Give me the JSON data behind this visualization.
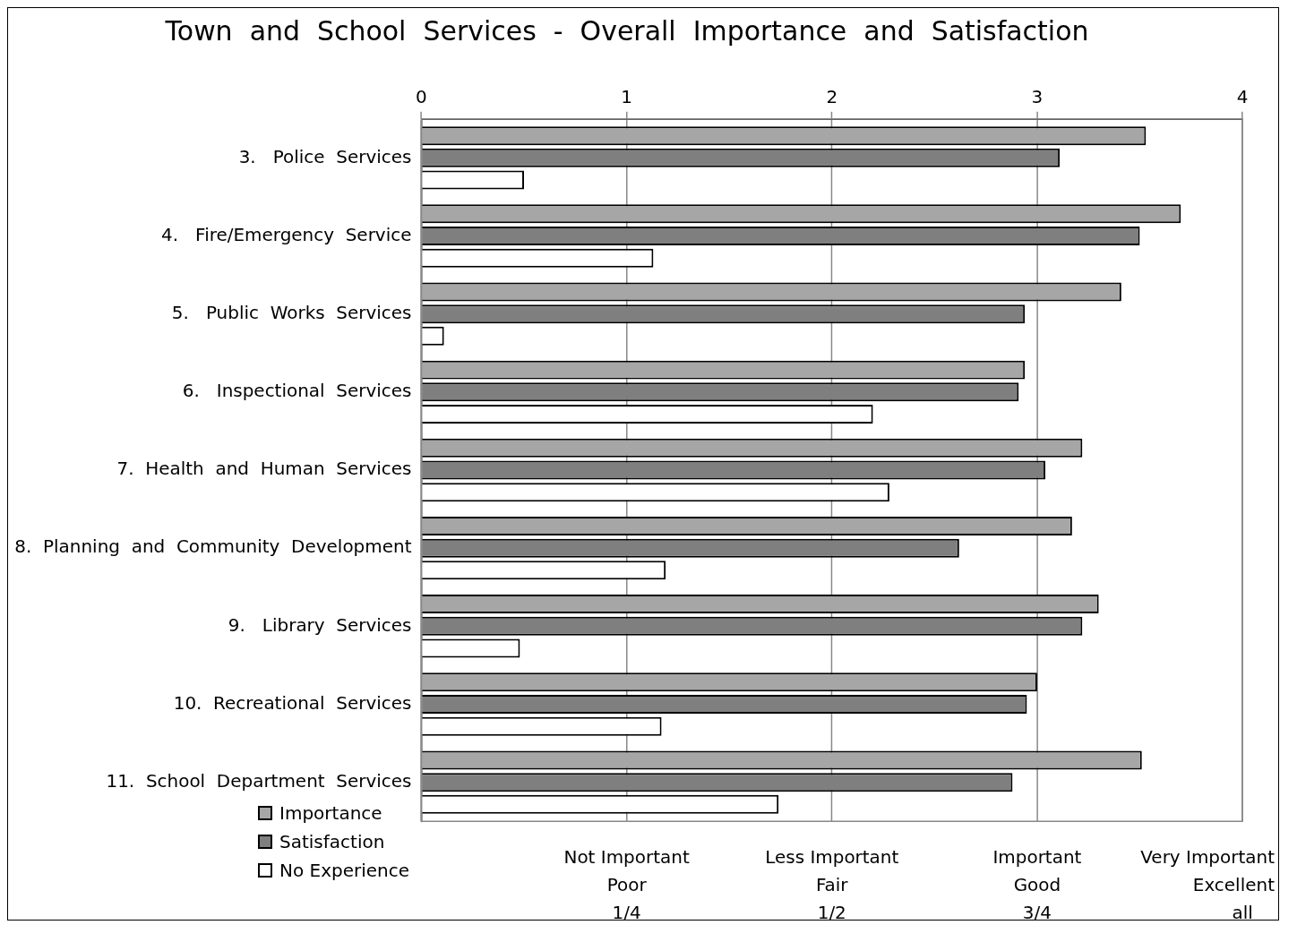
{
  "chart_data": {
    "type": "bar",
    "orientation": "horizontal",
    "title": "Town  and  School  Services  -  Overall  Importance  and  Satisfaction",
    "categories": [
      "3.   Police  Services",
      "4.   Fire/Emergency  Service",
      "5.   Public  Works  Services",
      "6.   Inspectional  Services",
      "7.  Health  and  Human  Services",
      "8.  Planning  and  Community  Development",
      "9.   Library  Services",
      "10.  Recreational  Services",
      "11.  School  Department  Services"
    ],
    "series": [
      {
        "name": "Importance",
        "color": "#a6a6a6",
        "values": [
          3.53,
          3.7,
          3.41,
          2.94,
          3.22,
          3.17,
          3.3,
          3.0,
          3.51
        ]
      },
      {
        "name": "Satisfaction",
        "color": "#7f7f7f",
        "values": [
          3.11,
          3.5,
          2.94,
          2.91,
          3.04,
          2.62,
          3.22,
          2.95,
          2.88
        ]
      },
      {
        "name": "No Experience",
        "color": "#ffffff",
        "values": [
          0.5,
          1.13,
          0.11,
          2.2,
          2.28,
          1.19,
          0.48,
          1.17,
          1.74
        ]
      }
    ],
    "xlim": [
      0,
      4
    ],
    "xticks": [
      0,
      1,
      2,
      3,
      4
    ],
    "grid": "x",
    "legend": "bottom left",
    "annotations": [
      "Not Important\nPoor\n1/4",
      "Less Important\nFair\n1/2",
      "Important\nGood\n3/4",
      "Very Important\nExcellent\nall"
    ]
  }
}
